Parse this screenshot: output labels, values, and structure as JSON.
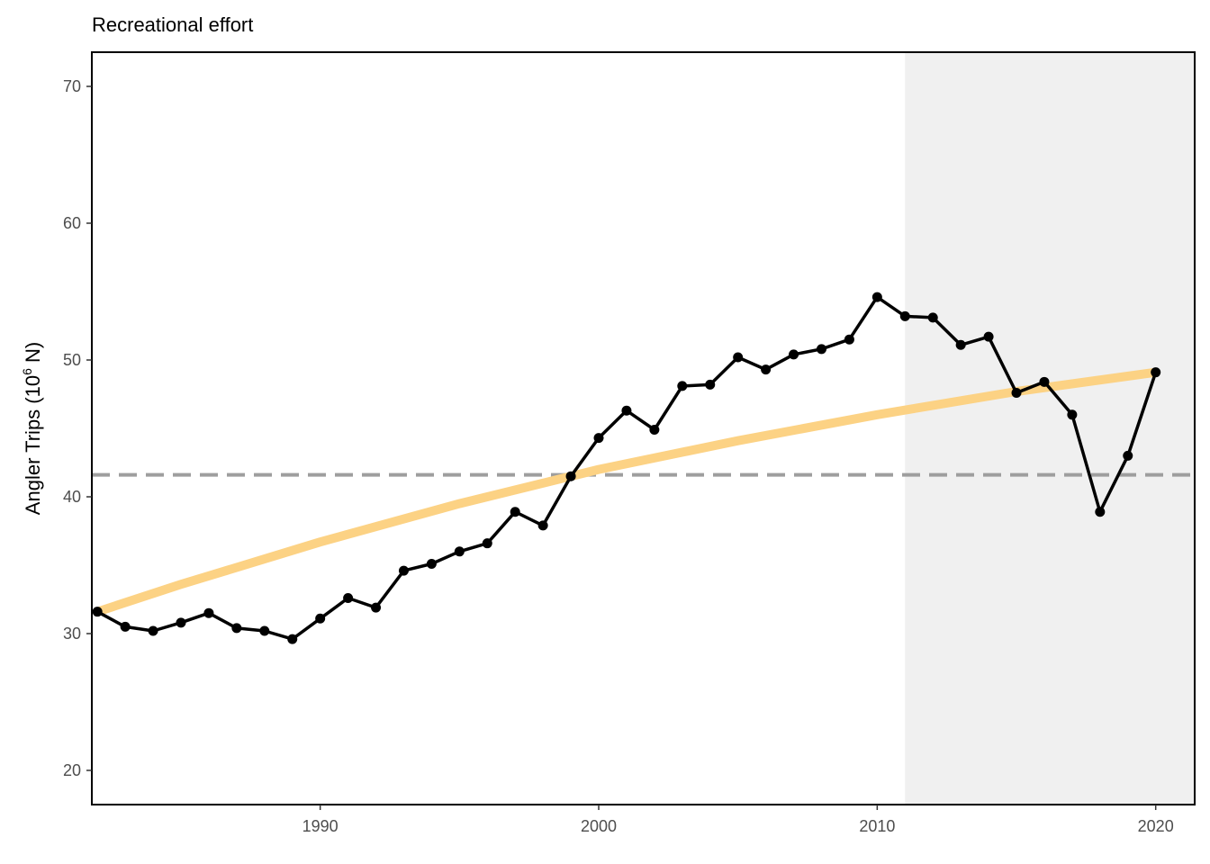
{
  "chart_data": {
    "type": "line",
    "title": "Recreational effort",
    "xlabel": "",
    "ylabel": "Angler Trips (10",
    "ylabel_sup": "6",
    "ylabel_tail": " N)",
    "xlim": [
      1981.8,
      2021.4
    ],
    "ylim": [
      17.5,
      72.5
    ],
    "x_ticks": [
      1990,
      2000,
      2010,
      2020
    ],
    "y_ticks": [
      20,
      30,
      40,
      50,
      60,
      70
    ],
    "grid": false,
    "shaded_region": {
      "x_start": 2011,
      "x_end": 2021.4,
      "color": "#f0f0f0"
    },
    "reference_line": {
      "y": 41.6,
      "style": "dashed",
      "color": "#9e9e9e"
    },
    "series": [
      {
        "type": "line_points",
        "color": "#000000",
        "x": [
          1982,
          1983,
          1984,
          1985,
          1986,
          1987,
          1988,
          1989,
          1990,
          1991,
          1992,
          1993,
          1994,
          1995,
          1996,
          1997,
          1998,
          1999,
          2000,
          2001,
          2002,
          2003,
          2004,
          2005,
          2006,
          2007,
          2008,
          2009,
          2010,
          2011,
          2012,
          2013,
          2014,
          2015,
          2016,
          2017,
          2018,
          2019,
          2020
        ],
        "y": [
          31.6,
          30.5,
          30.2,
          30.8,
          31.5,
          30.4,
          30.2,
          29.6,
          31.1,
          32.6,
          31.9,
          34.6,
          35.1,
          36.0,
          36.6,
          38.9,
          37.9,
          41.5,
          44.3,
          46.3,
          44.9,
          48.1,
          48.2,
          50.2,
          49.3,
          50.4,
          50.8,
          51.5,
          54.6,
          53.2,
          53.1,
          51.1,
          51.7,
          47.6,
          48.4,
          46.0,
          38.9,
          43.0,
          49.1
        ]
      },
      {
        "type": "trend",
        "color": "#fcd284",
        "x": [
          1982,
          1985,
          1990,
          1995,
          2000,
          2005,
          2010,
          2015,
          2020
        ],
        "y": [
          31.6,
          33.6,
          36.7,
          39.5,
          42.0,
          44.1,
          46.0,
          47.7,
          49.1
        ]
      }
    ]
  }
}
